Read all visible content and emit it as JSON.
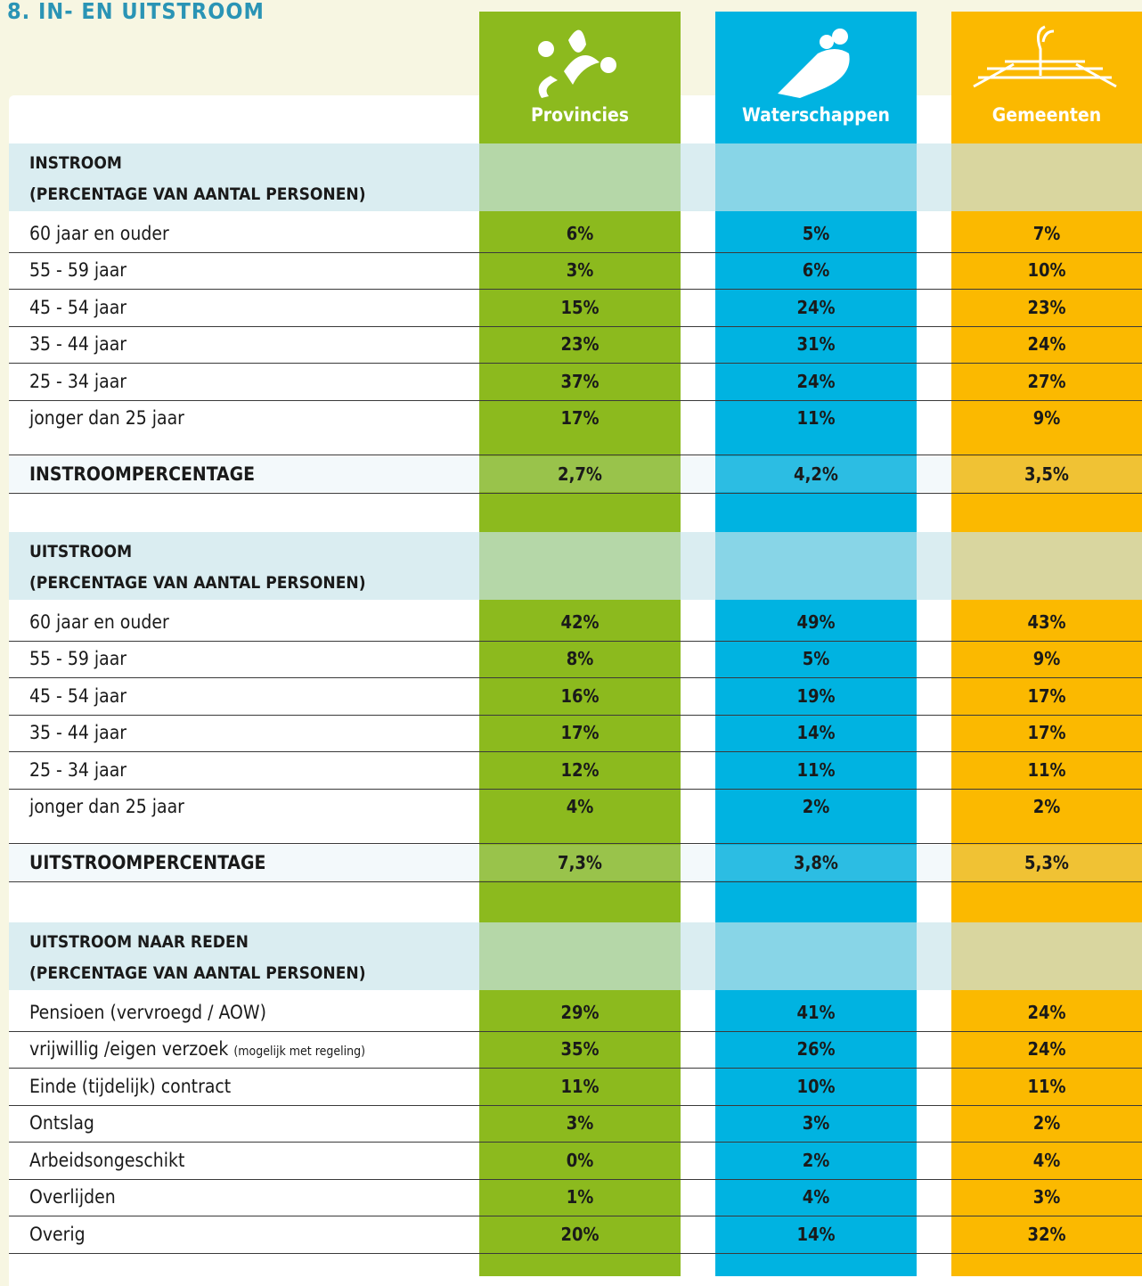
{
  "header": {
    "title": "8. IN- EN UITSTROOM"
  },
  "columns": [
    "Provincies",
    "Waterschappen",
    "Gemeenten"
  ],
  "sections": [
    {
      "title": "INSTROOM",
      "subtitle": "(PERCENTAGE VAN AANTAL PERSONEN)",
      "rows": [
        {
          "label": "60 jaar en ouder",
          "values": [
            "6%",
            "5%",
            "7%"
          ]
        },
        {
          "label": "55 - 59 jaar",
          "values": [
            "3%",
            "6%",
            "10%"
          ]
        },
        {
          "label": "45 - 54 jaar",
          "values": [
            "15%",
            "24%",
            "23%"
          ]
        },
        {
          "label": "35 - 44 jaar",
          "values": [
            "23%",
            "31%",
            "24%"
          ]
        },
        {
          "label": "25 - 34 jaar",
          "values": [
            "37%",
            "24%",
            "27%"
          ]
        },
        {
          "label": "jonger dan 25 jaar",
          "values": [
            "17%",
            "11%",
            "9%"
          ]
        }
      ],
      "total": {
        "label": "INSTROOMPERCENTAGE",
        "values": [
          "2,7%",
          "4,2%",
          "3,5%"
        ]
      }
    },
    {
      "title": "UITSTROOM",
      "subtitle": "(PERCENTAGE VAN AANTAL PERSONEN)",
      "rows": [
        {
          "label": "60 jaar en ouder",
          "values": [
            "42%",
            "49%",
            "43%"
          ]
        },
        {
          "label": "55 - 59 jaar",
          "values": [
            "8%",
            "5%",
            "9%"
          ]
        },
        {
          "label": "45 - 54 jaar",
          "values": [
            "16%",
            "19%",
            "17%"
          ]
        },
        {
          "label": "35 - 44 jaar",
          "values": [
            "17%",
            "14%",
            "17%"
          ]
        },
        {
          "label": "25 - 34 jaar",
          "values": [
            "12%",
            "11%",
            "11%"
          ]
        },
        {
          "label": "jonger dan 25 jaar",
          "values": [
            "4%",
            "2%",
            "2%"
          ]
        }
      ],
      "total": {
        "label": "UITSTROOMPERCENTAGE",
        "values": [
          "7,3%",
          "3,8%",
          "5,3%"
        ]
      }
    },
    {
      "title": "UITSTROOM NAAR REDEN",
      "subtitle": "(PERCENTAGE VAN AANTAL PERSONEN)",
      "rows": [
        {
          "label": "Pensioen (vervroegd / AOW)",
          "values": [
            "29%",
            "41%",
            "24%"
          ]
        },
        {
          "label": "vrijwillig /eigen verzoek",
          "label_note": "(mogelijk met regeling)",
          "values": [
            "35%",
            "26%",
            "24%"
          ]
        },
        {
          "label": "Einde (tijdelijk) contract",
          "values": [
            "11%",
            "10%",
            "11%"
          ]
        },
        {
          "label": "Ontslag",
          "values": [
            "3%",
            "3%",
            "2%"
          ]
        },
        {
          "label": "Arbeidsongeschikt",
          "values": [
            "0%",
            "2%",
            "4%"
          ]
        },
        {
          "label": "Overlijden",
          "values": [
            "1%",
            "4%",
            "3%"
          ]
        },
        {
          "label": "Overig",
          "values": [
            "20%",
            "14%",
            "32%"
          ]
        }
      ]
    }
  ]
}
